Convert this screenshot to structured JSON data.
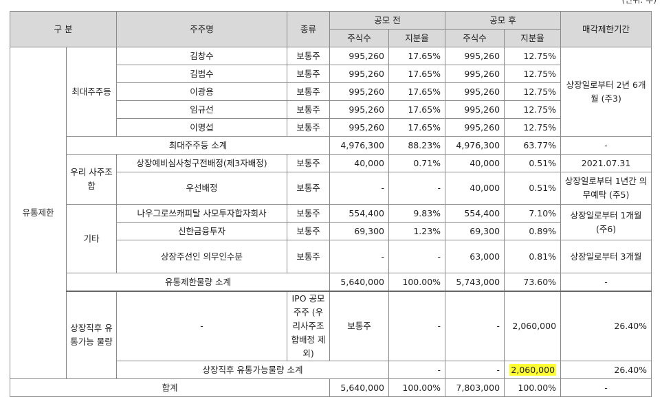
{
  "unit_text": "(단위: 주)",
  "headers": {
    "category": "구 분",
    "shareholder": "주주명",
    "type": "종류",
    "before": "공모 전",
    "after": "공모 후",
    "shares": "주식수",
    "ratio": "지분율",
    "restriction": "매각제한기간"
  },
  "group_restricted": "유통제한",
  "group_largest": "최대주주등",
  "largest_rows": [
    {
      "name": "김창수",
      "type": "보통주",
      "bs": "995,260",
      "br": "17.65%",
      "as": "995,260",
      "ar": "12.75%"
    },
    {
      "name": "김범수",
      "type": "보통주",
      "bs": "995,260",
      "br": "17.65%",
      "as": "995,260",
      "ar": "12.75%"
    },
    {
      "name": "이광용",
      "type": "보통주",
      "bs": "995,260",
      "br": "17.65%",
      "as": "995,260",
      "ar": "12.75%"
    },
    {
      "name": "임규선",
      "type": "보통주",
      "bs": "995,260",
      "br": "17.65%",
      "as": "995,260",
      "ar": "12.75%"
    },
    {
      "name": "이명섭",
      "type": "보통주",
      "bs": "995,260",
      "br": "17.65%",
      "as": "995,260",
      "ar": "12.75%"
    }
  ],
  "largest_restriction": "상장일로부터 2년 6개월 (주3)",
  "largest_subtotal": {
    "label": "최대주주등 소계",
    "bs": "4,976,300",
    "br": "88.23%",
    "as": "4,976,300",
    "ar": "63.77%",
    "restriction": "-"
  },
  "group_employee": "우리 사주조합",
  "employee_rows": [
    {
      "name": "상장예비심사청구전배정(제3자배정)",
      "type": "보통주",
      "bs": "40,000",
      "br": "0.71%",
      "as": "40,000",
      "ar": "0.51%",
      "restriction": "2021.07.31"
    },
    {
      "name": "우선배정",
      "type": "보통주",
      "bs": "-",
      "br": "-",
      "as": "40,000",
      "ar": "0.51%",
      "restriction": "상장일로부터 1년간 의무예탁 (주5)"
    }
  ],
  "group_other": "기타",
  "other_rows": [
    {
      "name": "나우그로쓰캐피탈 사모투자합자회사",
      "type": "보통주",
      "bs": "554,400",
      "br": "9.83%",
      "as": "554,400",
      "ar": "7.10%"
    },
    {
      "name": "신한금융투자",
      "type": "보통주",
      "bs": "69,300",
      "br": "1.23%",
      "as": "69,300",
      "ar": "0.89%"
    },
    {
      "name": "상장주선인 의무인수분",
      "type": "보통주",
      "bs": "-",
      "br": "-",
      "as": "63,000",
      "ar": "0.81%",
      "restriction": "상장일로부터 3개월"
    }
  ],
  "other_restriction": "상장일로부터 1개월 (주6)",
  "restricted_subtotal": {
    "label": "유통제한물량 소계",
    "bs": "5,640,000",
    "br": "100.00%",
    "as": "5,743,000",
    "ar": "73.60%",
    "restriction": "-"
  },
  "group_tradable": "상장직후 유통가능 물량",
  "tradable_sub": "-",
  "ipo_row": {
    "name": "IPO 공모주주 (우리사주조합배정 제외)",
    "type": "보통주",
    "bs": "-",
    "br": "-",
    "as": "2,060,000",
    "ar": "26.40%",
    "restriction": "-"
  },
  "tradable_subtotal": {
    "label": "상장직후 유통가능물량 소계",
    "bs": "-",
    "br": "-",
    "as": "2,060,000",
    "ar": "26.40%",
    "restriction": "-"
  },
  "total": {
    "label": "합계",
    "bs": "5,640,000",
    "br": "100.00%",
    "as": "7,803,000",
    "ar": "100.00%",
    "restriction": "-"
  },
  "colors": {
    "header_bg": "#d9d9d9",
    "highlight": "#ffff33",
    "border": "#8a8a8a"
  }
}
